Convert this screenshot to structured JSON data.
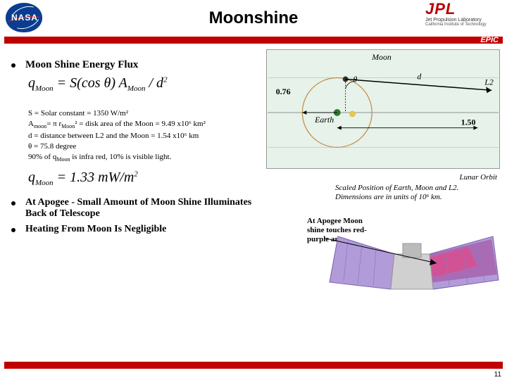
{
  "header": {
    "title": "Moonshine",
    "nasa_text": "NASA",
    "jpl_mark": "JPL",
    "jpl_line1": "Jet Propulsion Laboratory",
    "jpl_line2": "California Institute of Technology",
    "badge": "EPIC"
  },
  "left": {
    "heading": "Moon Shine Energy Flux",
    "eq1_html": "q<sub class='eq-sub'>Moon</sub> = S(cos θ) A<sub class='eq-sub'>Moon</sub> / d<sup class='eq-sup'>2</sup>",
    "defs": {
      "l1": "S = Solar constant = 1350 W/m²",
      "l2": "A<sub>moon</sub>= π r<sub>Moon</sub>² = disk area of the Moon = 9.49 x10⁶ km²",
      "l3": "d = distance between L2 and the Moon = 1.54 x10⁶ km",
      "l4": "θ = 75.8 degree",
      "l5": "90% of q<sub>Moon</sub> is infra red, 10% is visible light."
    },
    "eq2_html": "q<sub class='eq-sub'>Moon</sub> = 1.33 mW/m<sup class='eq-sup'>2</sup>",
    "b2": "At Apogee - Small Amount of Moon Shine Illuminates Back of Telescope",
    "b3": "Heating From Moon Is Negligible"
  },
  "diagram": {
    "moon_label": "Moon",
    "earth_label": "Earth",
    "theta": "θ",
    "d_label": "d",
    "l2_label": "L2",
    "val_left": "0.76",
    "val_right": "1.50",
    "background": "#e6f2ea",
    "axis_color": "#888888",
    "orbit_color": "#c08a3e",
    "moon_color": "#333333",
    "earth_color": "#2a7a2a",
    "sun_color": "#e8c84a",
    "dline_color": "#000000",
    "grid_color": "#94bfa0",
    "orbit_caption": "Lunar Orbit",
    "scale_caption": "Scaled Position of Earth, Moon and L2. Dimensions are in units of 10⁶ km."
  },
  "sc": {
    "caption": "At Apogee Moon shine touches red-purple area",
    "panel_color": "#b19cd9",
    "panel_accent": "#a23b8f",
    "highlight": "#d94f8f",
    "body_color": "#d0d0d0",
    "background": "#ffffff"
  },
  "page_number": "11"
}
